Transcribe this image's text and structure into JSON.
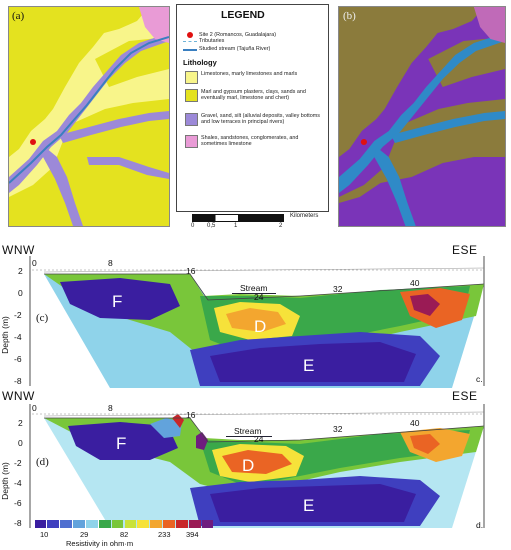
{
  "maps": {
    "panel_a": "(a)",
    "panel_b": "(b)",
    "colors_a": {
      "limestone": "#f8f58a",
      "marl": "#e4e21f",
      "gravel": "#9c89d8",
      "shale": "#e99bd6"
    },
    "colors_b": {
      "limestone": "#7a34b8",
      "marl": "#8b7b3c",
      "gravel": "#2f8ac7",
      "shale": "#c06ab8"
    }
  },
  "legend": {
    "title": "LEGEND",
    "site": "Site 2 (Romancos, Guadalajara)",
    "tributaries": "Tributaries",
    "stream": "Studied stream (Tajuña River)",
    "lithology_heading": "Lithology",
    "items": [
      {
        "text": "Limestones, marly limestones and marls",
        "color": "#f8f58a"
      },
      {
        "text": "Marl and gypsum plasters, clays, sands and eventually marl, limestone and chert)",
        "color": "#e4e21f"
      },
      {
        "text": "Gravel, sand, silt (alluvial deposits, valley bottoms and low terraces in principal rivers)",
        "color": "#9c89d8"
      },
      {
        "text": "Shales, sandstones, conglomerates, and sometimes limestone",
        "color": "#e99bd6"
      }
    ],
    "site_color": "#e01010",
    "tributary_color": "#6fb4d8",
    "stream_color": "#3a7fc0"
  },
  "scalebar": {
    "unit": "Kilometers",
    "ticks": [
      "0",
      "0,5",
      "1",
      "2"
    ]
  },
  "sections": {
    "left_dir": "WNW",
    "right_dir": "ESE",
    "ylabel": "Depth (m)",
    "yticks": [
      "2",
      "0",
      "-2",
      "-4",
      "-6",
      "-8"
    ],
    "xticks": [
      "0",
      "8",
      "16",
      "24",
      "32",
      "40"
    ],
    "stream": "Stream",
    "zones": [
      "F",
      "D",
      "E"
    ],
    "panel_c": "(c)",
    "panel_d": "(d)",
    "corner_c": "c.",
    "corner_d": "d."
  },
  "colorbar": {
    "title": "Resistivity in ohm·m",
    "labels": [
      "10",
      "29",
      "82",
      "233",
      "394"
    ],
    "colors": [
      "#3a1ea0",
      "#3f3fbf",
      "#4f6fd0",
      "#62a3dc",
      "#8fd3ea",
      "#3aa84a",
      "#79c63a",
      "#c9e23a",
      "#f6e23a",
      "#f3a62f",
      "#ea6424",
      "#c8262a",
      "#9a1b55",
      "#6e1c7e"
    ]
  }
}
